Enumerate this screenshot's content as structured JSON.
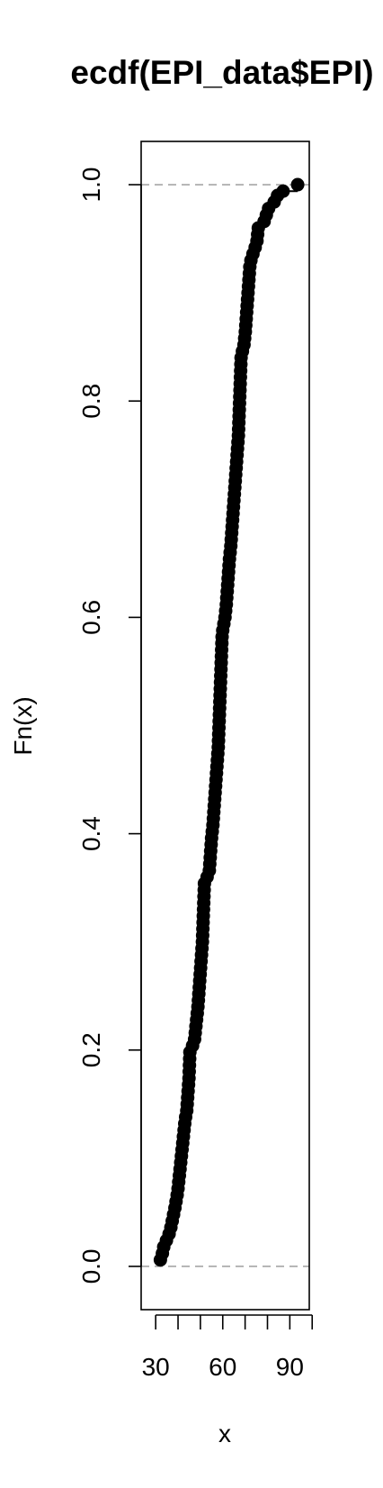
{
  "chart_data": {
    "type": "scatter",
    "title": "ecdf(EPI_data$EPI)",
    "xlabel": "x",
    "ylabel": "Fn(x)",
    "xlim": [
      23.5,
      98.7
    ],
    "ylim": [
      -0.04,
      1.04
    ],
    "x_ticks": [
      30,
      40,
      50,
      60,
      70,
      80,
      90,
      100
    ],
    "x_tick_labels": [
      "30",
      "60",
      "90"
    ],
    "x_tick_label_values": [
      30,
      60,
      90
    ],
    "y_ticks": [
      0.0,
      0.2,
      0.4,
      0.6,
      0.8,
      1.0
    ],
    "y_tick_labels": [
      "0.0",
      "0.2",
      "0.4",
      "0.6",
      "0.8",
      "1.0"
    ],
    "reference_lines_y": [
      0,
      1
    ],
    "series": [
      {
        "color": "#000000",
        "points": [
          [
            32.1,
            0.006
          ],
          [
            33.0,
            0.012
          ],
          [
            33.6,
            0.018
          ],
          [
            34.8,
            0.024
          ],
          [
            36.0,
            0.03
          ],
          [
            36.8,
            0.036
          ],
          [
            37.4,
            0.042
          ],
          [
            38.0,
            0.048
          ],
          [
            38.6,
            0.054
          ],
          [
            39.1,
            0.06
          ],
          [
            39.6,
            0.066
          ],
          [
            40.0,
            0.072
          ],
          [
            40.3,
            0.078
          ],
          [
            40.6,
            0.084
          ],
          [
            40.9,
            0.09
          ],
          [
            41.2,
            0.096
          ],
          [
            41.5,
            0.102
          ],
          [
            41.8,
            0.108
          ],
          [
            42.1,
            0.114
          ],
          [
            42.4,
            0.12
          ],
          [
            42.7,
            0.126
          ],
          [
            43.0,
            0.132
          ],
          [
            43.4,
            0.138
          ],
          [
            43.9,
            0.144
          ],
          [
            44.1,
            0.15
          ],
          [
            44.3,
            0.156
          ],
          [
            44.5,
            0.162
          ],
          [
            44.7,
            0.168
          ],
          [
            44.9,
            0.174
          ],
          [
            45.0,
            0.18
          ],
          [
            45.1,
            0.186
          ],
          [
            45.2,
            0.192
          ],
          [
            45.3,
            0.198
          ],
          [
            46.5,
            0.204
          ],
          [
            47.4,
            0.21
          ],
          [
            47.7,
            0.216
          ],
          [
            48.0,
            0.222
          ],
          [
            48.3,
            0.228
          ],
          [
            48.6,
            0.234
          ],
          [
            48.9,
            0.24
          ],
          [
            49.1,
            0.246
          ],
          [
            49.3,
            0.252
          ],
          [
            49.5,
            0.258
          ],
          [
            49.7,
            0.264
          ],
          [
            49.9,
            0.27
          ],
          [
            50.1,
            0.276
          ],
          [
            50.3,
            0.282
          ],
          [
            50.5,
            0.288
          ],
          [
            50.7,
            0.294
          ],
          [
            50.9,
            0.3
          ],
          [
            51.0,
            0.306
          ],
          [
            51.1,
            0.312
          ],
          [
            51.2,
            0.318
          ],
          [
            51.3,
            0.324
          ],
          [
            51.4,
            0.33
          ],
          [
            51.5,
            0.336
          ],
          [
            51.6,
            0.342
          ],
          [
            51.7,
            0.348
          ],
          [
            51.8,
            0.354
          ],
          [
            53.0,
            0.36
          ],
          [
            54.0,
            0.366
          ],
          [
            54.2,
            0.372
          ],
          [
            54.4,
            0.378
          ],
          [
            54.6,
            0.384
          ],
          [
            54.8,
            0.39
          ],
          [
            55.0,
            0.396
          ],
          [
            55.3,
            0.402
          ],
          [
            55.6,
            0.408
          ],
          [
            55.8,
            0.414
          ],
          [
            56.0,
            0.42
          ],
          [
            56.2,
            0.426
          ],
          [
            56.4,
            0.432
          ],
          [
            56.6,
            0.438
          ],
          [
            56.8,
            0.444
          ],
          [
            57.0,
            0.45
          ],
          [
            57.2,
            0.456
          ],
          [
            57.4,
            0.462
          ],
          [
            57.6,
            0.468
          ],
          [
            57.8,
            0.474
          ],
          [
            58.0,
            0.48
          ],
          [
            58.1,
            0.486
          ],
          [
            58.2,
            0.492
          ],
          [
            58.3,
            0.498
          ],
          [
            58.4,
            0.504
          ],
          [
            58.5,
            0.51
          ],
          [
            58.6,
            0.516
          ],
          [
            58.7,
            0.522
          ],
          [
            58.8,
            0.528
          ],
          [
            58.9,
            0.534
          ],
          [
            59.0,
            0.54
          ],
          [
            59.1,
            0.546
          ],
          [
            59.2,
            0.552
          ],
          [
            59.3,
            0.558
          ],
          [
            59.4,
            0.564
          ],
          [
            59.5,
            0.57
          ],
          [
            59.6,
            0.576
          ],
          [
            59.7,
            0.582
          ],
          [
            60.0,
            0.588
          ],
          [
            60.5,
            0.594
          ],
          [
            61.0,
            0.6
          ],
          [
            61.3,
            0.606
          ],
          [
            61.6,
            0.612
          ],
          [
            61.8,
            0.618
          ],
          [
            62.0,
            0.624
          ],
          [
            62.2,
            0.63
          ],
          [
            62.4,
            0.636
          ],
          [
            62.6,
            0.642
          ],
          [
            62.8,
            0.648
          ],
          [
            63.0,
            0.654
          ],
          [
            63.3,
            0.66
          ],
          [
            63.6,
            0.666
          ],
          [
            63.8,
            0.672
          ],
          [
            64.0,
            0.678
          ],
          [
            64.2,
            0.684
          ],
          [
            64.4,
            0.69
          ],
          [
            64.6,
            0.696
          ],
          [
            64.8,
            0.702
          ],
          [
            65.0,
            0.708
          ],
          [
            65.2,
            0.714
          ],
          [
            65.4,
            0.72
          ],
          [
            65.6,
            0.726
          ],
          [
            65.8,
            0.732
          ],
          [
            66.0,
            0.738
          ],
          [
            66.2,
            0.744
          ],
          [
            66.4,
            0.75
          ],
          [
            66.6,
            0.756
          ],
          [
            66.8,
            0.762
          ],
          [
            67.0,
            0.768
          ],
          [
            67.1,
            0.774
          ],
          [
            67.2,
            0.78
          ],
          [
            67.3,
            0.786
          ],
          [
            67.4,
            0.792
          ],
          [
            67.5,
            0.798
          ],
          [
            67.6,
            0.804
          ],
          [
            67.7,
            0.81
          ],
          [
            67.8,
            0.816
          ],
          [
            67.9,
            0.822
          ],
          [
            68.0,
            0.828
          ],
          [
            68.1,
            0.834
          ],
          [
            68.2,
            0.84
          ],
          [
            68.8,
            0.846
          ],
          [
            69.5,
            0.852
          ],
          [
            69.8,
            0.858
          ],
          [
            70.1,
            0.864
          ],
          [
            70.3,
            0.87
          ],
          [
            70.5,
            0.876
          ],
          [
            70.7,
            0.882
          ],
          [
            70.9,
            0.888
          ],
          [
            71.1,
            0.894
          ],
          [
            71.3,
            0.9
          ],
          [
            71.5,
            0.906
          ],
          [
            71.7,
            0.912
          ],
          [
            71.9,
            0.918
          ],
          [
            72.1,
            0.924
          ],
          [
            72.6,
            0.93
          ],
          [
            73.5,
            0.936
          ],
          [
            74.5,
            0.942
          ],
          [
            75.3,
            0.948
          ],
          [
            75.6,
            0.954
          ],
          [
            75.9,
            0.96
          ],
          [
            78.5,
            0.966
          ],
          [
            79.5,
            0.972
          ],
          [
            80.5,
            0.978
          ],
          [
            83.0,
            0.984
          ],
          [
            84.5,
            0.99
          ],
          [
            87.0,
            0.994
          ],
          [
            93.5,
            1.0
          ]
        ]
      }
    ]
  }
}
